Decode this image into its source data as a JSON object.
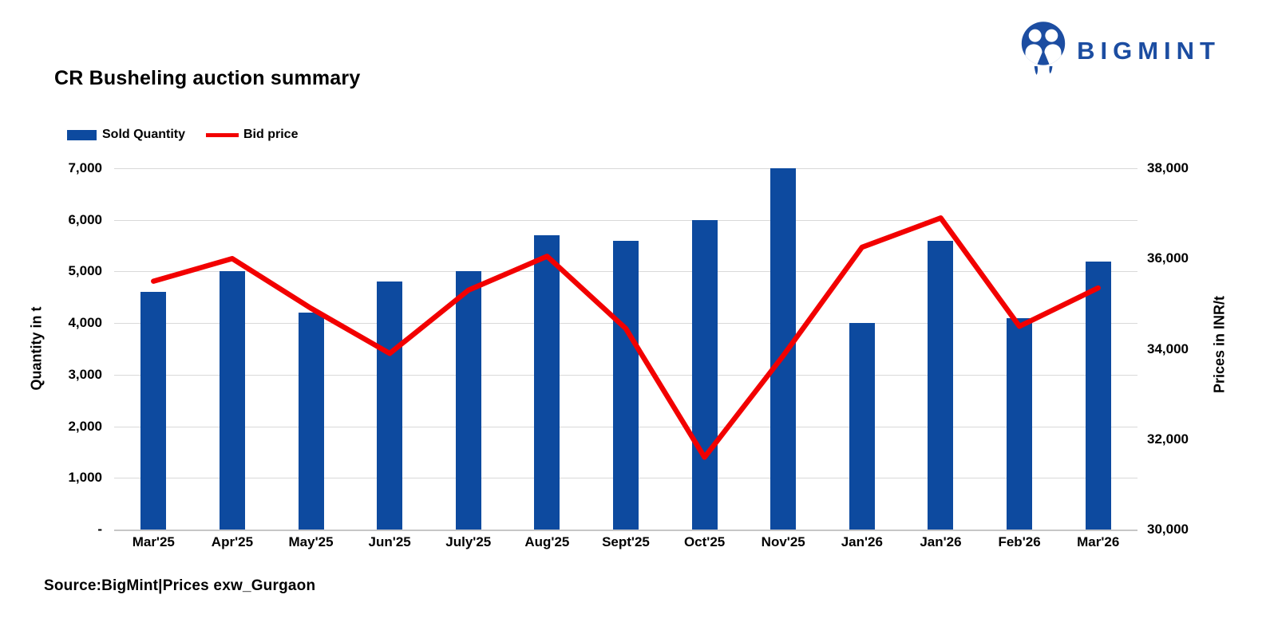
{
  "page": {
    "background": "#ffffff"
  },
  "header": {
    "title": "CR Busheling auction summary",
    "logo": {
      "text": "BIGMINT",
      "color": "#1C4DA1",
      "icon": "bigmint-people-icon"
    }
  },
  "legend": [
    {
      "label": "Sold Quantity",
      "type": "bar",
      "color": "#0D4A9F"
    },
    {
      "label": "Bid price",
      "type": "line",
      "color": "#F20000"
    }
  ],
  "chart_data": {
    "type": "bar",
    "subtype": "bar+line dual axis",
    "title": "CR Busheling auction summary",
    "categories": [
      "Mar'25",
      "Apr'25",
      "May'25",
      "Jun'25",
      "July'25",
      "Aug'25",
      "Sept'25",
      "Oct'25",
      "Nov'25",
      "Jan'26",
      "Jan'26",
      "Feb'26",
      "Mar'26"
    ],
    "series": [
      {
        "name": "Sold Quantity",
        "type": "bar",
        "axis": "left",
        "color": "#0D4A9F",
        "values": [
          4600,
          5000,
          4200,
          4800,
          5000,
          5700,
          5600,
          6000,
          7000,
          4000,
          5600,
          4100,
          5200
        ]
      },
      {
        "name": "Bid price",
        "type": "line",
        "axis": "right",
        "color": "#F20000",
        "values": [
          35500,
          36000,
          34900,
          33900,
          35300,
          36050,
          34450,
          31600,
          33850,
          36250,
          36900,
          34500,
          35350
        ]
      }
    ],
    "left_axis": {
      "title": "Quantity in t",
      "min": 0,
      "max": 7000,
      "step": 1000,
      "tick_labels_top_down": [
        "7,000",
        "6,000",
        "5,000",
        "4,000",
        "3,000",
        "2,000",
        "1,000",
        "-"
      ]
    },
    "right_axis": {
      "title": "Prices in INR/t",
      "min": 30000,
      "max": 38000,
      "step": 2000,
      "tick_labels_top_down": [
        "38,000",
        "36,000",
        "34,000",
        "32,000",
        "30,000"
      ]
    },
    "grid": true,
    "gridline_color": "#D9D9D9",
    "legend_position": "top-left"
  },
  "footer": {
    "source": "Source:BigMint|Prices exw_Gurgaon"
  }
}
